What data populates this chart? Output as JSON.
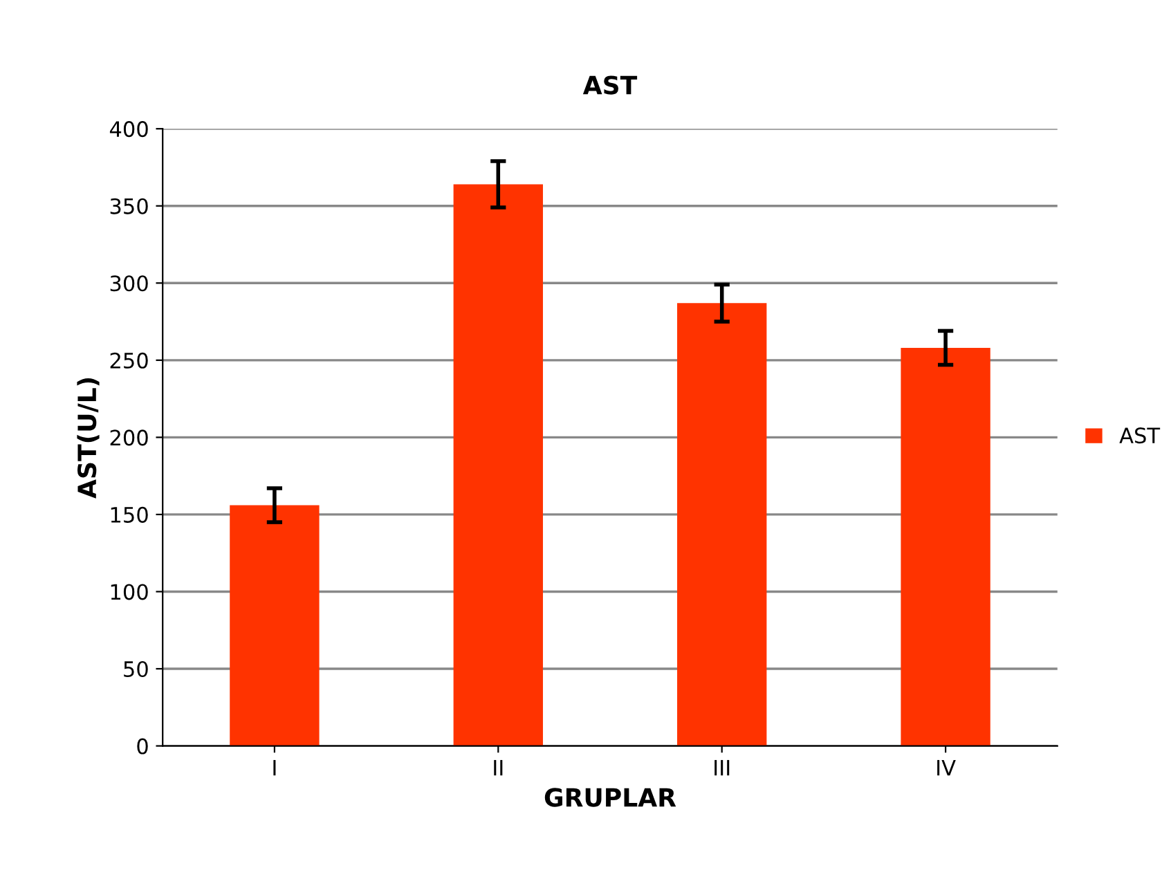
{
  "chart_data": {
    "type": "bar",
    "title": "AST",
    "xlabel": "GRUPLAR",
    "ylabel": "AST(U/L)",
    "categories": [
      "I",
      "II",
      "III",
      "IV"
    ],
    "series": [
      {
        "name": "AST",
        "color": "#ff3300",
        "values": [
          156,
          364,
          287,
          258
        ],
        "errors": [
          11,
          15,
          12,
          11
        ]
      }
    ],
    "ylim": [
      0,
      400
    ],
    "yticks": [
      0,
      50,
      100,
      150,
      200,
      250,
      300,
      350,
      400
    ],
    "grid": "y",
    "legend": "right"
  }
}
